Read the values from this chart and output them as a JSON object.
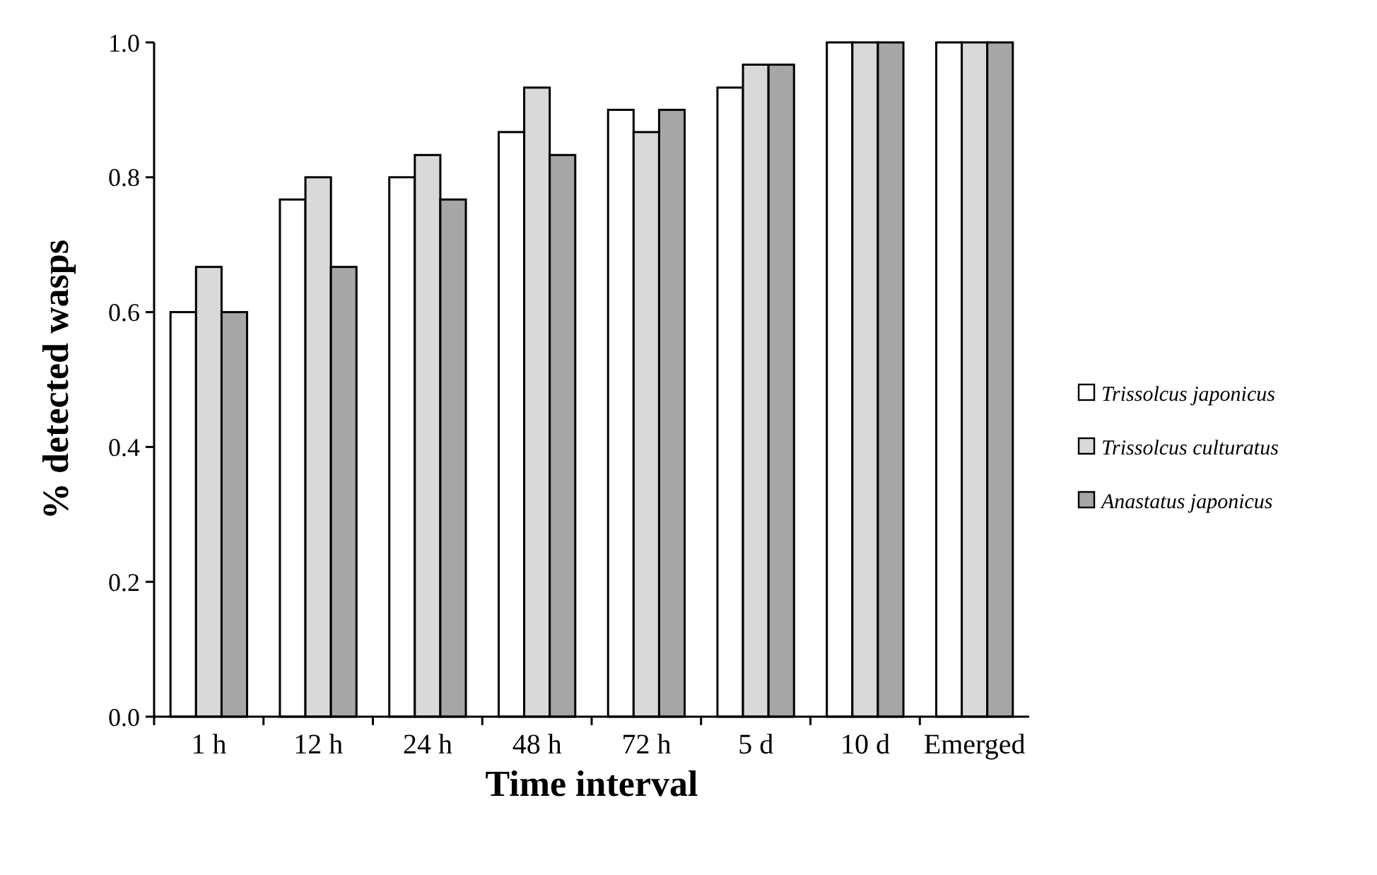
{
  "chart_data": {
    "type": "bar",
    "xlabel": "Time interval",
    "ylabel": "% detected wasps",
    "categories": [
      "1 h",
      "12 h",
      "24 h",
      "48 h",
      "72 h",
      "5 d",
      "10 d",
      "Emerged"
    ],
    "series": [
      {
        "name": "Trissolcus japonicus",
        "color": "#ffffff",
        "values": [
          0.6,
          0.767,
          0.8,
          0.867,
          0.9,
          0.933,
          1,
          1
        ]
      },
      {
        "name": "Trissolcus culturatus",
        "color": "#d9d9d9",
        "values": [
          0.667,
          0.8,
          0.833,
          0.933,
          0.867,
          0.967,
          1,
          1
        ]
      },
      {
        "name": "Anastatus japonicus",
        "color": "#a6a6a6",
        "values": [
          0.6,
          0.667,
          0.767,
          0.833,
          0.9,
          0.967,
          1,
          1
        ]
      }
    ],
    "ylim": [
      0,
      1
    ],
    "yticks": [
      {
        "value": 0,
        "label": "0.0"
      },
      {
        "value": 0.2,
        "label": "0.2"
      },
      {
        "value": 0.4,
        "label": "0.4"
      },
      {
        "value": 0.6,
        "label": "0.6"
      },
      {
        "value": 0.8,
        "label": "0.8"
      },
      {
        "value": 1,
        "label": "1.0"
      }
    ],
    "grid": false,
    "legend": "right"
  }
}
